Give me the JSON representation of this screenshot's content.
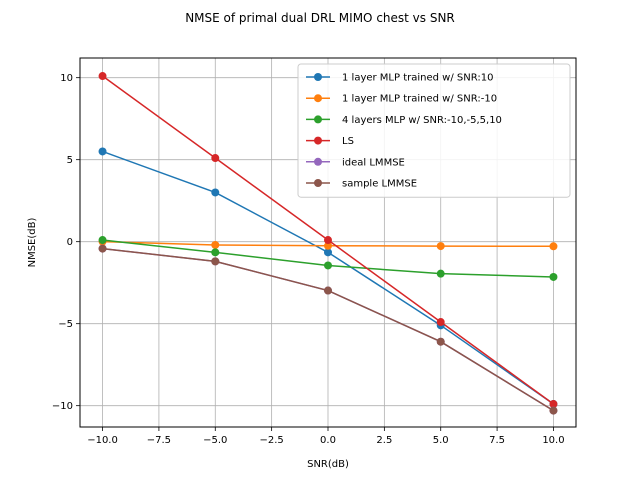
{
  "chart_data": {
    "type": "line",
    "title": "NMSE of primal dual DRL MIMO chest vs SNR",
    "xlabel": "SNR(dB)",
    "ylabel": "NMSE(dB)",
    "xlim": [
      -11,
      11
    ],
    "ylim": [
      -11.3,
      11.2
    ],
    "xticks": [
      -10.0,
      -7.5,
      -5.0,
      -2.5,
      0.0,
      2.5,
      5.0,
      7.5,
      10.0
    ],
    "xtick_labels": [
      "−10.0",
      "−7.5",
      "−5.0",
      "−2.5",
      "0.0",
      "2.5",
      "5.0",
      "7.5",
      "10.0"
    ],
    "yticks": [
      -10,
      -5,
      0,
      5,
      10
    ],
    "ytick_labels": [
      "−10",
      "−5",
      "0",
      "5",
      "10"
    ],
    "grid": true,
    "legend_position": "top-right",
    "x": [
      -10,
      -5,
      0,
      5,
      10
    ],
    "series": [
      {
        "name": "1 layer MLP trained w/ SNR:10",
        "color": "#1f77b4",
        "values": [
          5.5,
          3.0,
          -0.65,
          -5.1,
          -9.9
        ]
      },
      {
        "name": "1 layer MLP trained w/ SNR:-10",
        "color": "#ff7f0e",
        "values": [
          0.0,
          -0.2,
          -0.25,
          -0.27,
          -0.28
        ]
      },
      {
        "name": "4 layers MLP w/ SNR:-10,-5,5,10",
        "color": "#2ca02c",
        "values": [
          0.1,
          -0.65,
          -1.45,
          -1.95,
          -2.15
        ]
      },
      {
        "name": "LS",
        "color": "#d62728",
        "values": [
          10.1,
          5.1,
          0.1,
          -4.9,
          -9.9
        ]
      },
      {
        "name": "ideal LMMSE",
        "color": "#9467bd",
        "values": [
          -0.42,
          -1.2,
          -2.98,
          -6.1,
          -10.3
        ]
      },
      {
        "name": "sample LMMSE",
        "color": "#8c564b",
        "values": [
          -0.42,
          -1.2,
          -2.98,
          -6.1,
          -10.3
        ]
      }
    ]
  }
}
